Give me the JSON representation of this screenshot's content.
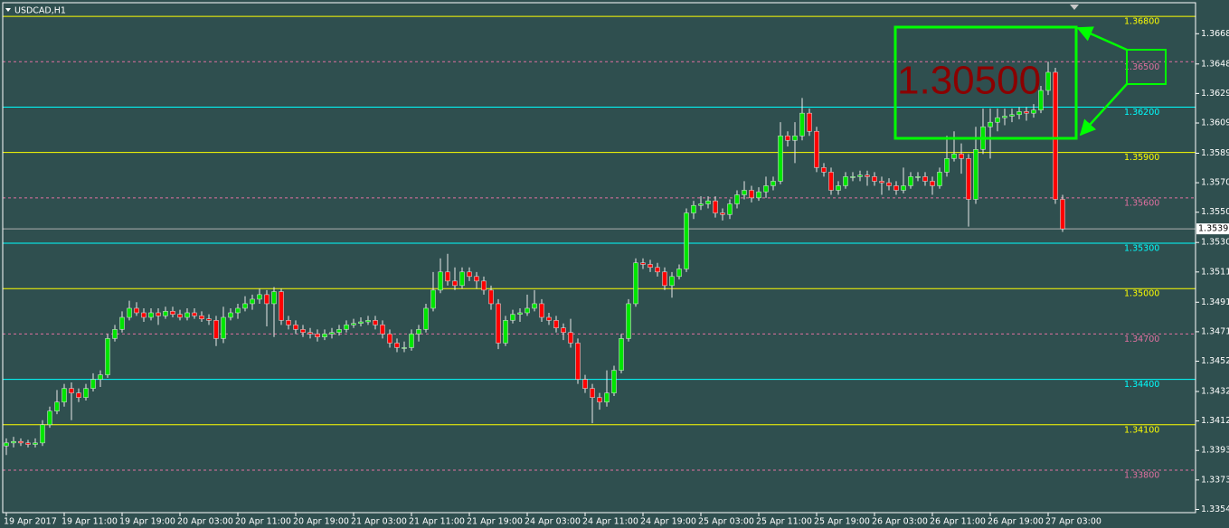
{
  "chart_data": {
    "type": "candlestick",
    "title": "USDCAD,H1",
    "annotation": "1.30500",
    "up_color": "#00e600",
    "down_color": "#ff0000",
    "wick_color": "#e8e8e8",
    "current_price": 1.35395,
    "ylim": [
      1.33519,
      1.36908
    ],
    "yticks": [
      1.36685,
      1.36485,
      {
        "value": 1.3629,
        "label": "1.36290"
      },
      1.36095,
      1.35895,
      {
        "value": 1.357,
        "label": "1.35700"
      },
      1.35505,
      1.35305,
      {
        "value": 1.3511,
        "label": "1.35110"
      },
      {
        "value": 1.3491,
        "label": "1.34910"
      },
      1.34715,
      {
        "value": 1.3452,
        "label": "1.34520"
      },
      {
        "value": 1.3432,
        "label": "1.34320"
      },
      1.34125,
      {
        "value": 1.3393,
        "label": "1.33930"
      },
      1.33735,
      {
        "value": 1.3354,
        "label": "1.33540"
      }
    ],
    "levels": [
      {
        "value": 1.368,
        "label": "1.36800",
        "color": "#ffff00",
        "dashed": false
      },
      {
        "value": 1.365,
        "label": "1.36500",
        "color": "#e070a0",
        "dashed": true
      },
      {
        "value": 1.362,
        "label": "1.36200",
        "color": "#00ffff",
        "dashed": false
      },
      {
        "value": 1.359,
        "label": "1.35900",
        "color": "#ffff00",
        "dashed": false
      },
      {
        "value": 1.356,
        "label": "1.35600",
        "color": "#e070a0",
        "dashed": true
      },
      {
        "value": 1.353,
        "label": "1.35300",
        "color": "#00ffff",
        "dashed": false
      },
      {
        "value": 1.35,
        "label": "1.35000",
        "color": "#ffff00",
        "dashed": false
      },
      {
        "value": 1.347,
        "label": "1.34700",
        "color": "#e070a0",
        "dashed": true
      },
      {
        "value": 1.344,
        "label": "1.34400",
        "color": "#00ffff",
        "dashed": false
      },
      {
        "value": 1.341,
        "label": "1.34100",
        "color": "#ffff00",
        "dashed": false
      },
      {
        "value": 1.338,
        "label": "1.33800",
        "color": "#e070a0",
        "dashed": true
      }
    ],
    "categories": [
      "19 Apr 2017",
      null,
      null,
      null,
      null,
      null,
      null,
      null,
      "19 Apr 11:00",
      null,
      null,
      null,
      null,
      null,
      null,
      null,
      "19 Apr 19:00",
      null,
      null,
      null,
      null,
      null,
      null,
      null,
      "20 Apr 03:00",
      null,
      null,
      null,
      null,
      null,
      null,
      null,
      "20 Apr 11:00",
      null,
      null,
      null,
      null,
      null,
      null,
      null,
      "20 Apr 19:00",
      null,
      null,
      null,
      null,
      null,
      null,
      null,
      "21 Apr 03:00",
      null,
      null,
      null,
      null,
      null,
      null,
      null,
      "21 Apr 11:00",
      null,
      null,
      null,
      null,
      null,
      null,
      null,
      "21 Apr 19:00",
      null,
      null,
      null,
      null,
      null,
      null,
      null,
      "24 Apr 03:00",
      null,
      null,
      null,
      null,
      null,
      null,
      null,
      "24 Apr 11:00",
      null,
      null,
      null,
      null,
      null,
      null,
      null,
      "24 Apr 19:00",
      null,
      null,
      null,
      null,
      null,
      null,
      null,
      "25 Apr 03:00",
      null,
      null,
      null,
      null,
      null,
      null,
      null,
      "25 Apr 11:00",
      null,
      null,
      null,
      null,
      null,
      null,
      null,
      "25 Apr 19:00",
      null,
      null,
      null,
      null,
      null,
      null,
      null,
      "26 Apr 03:00",
      null,
      null,
      null,
      null,
      null,
      null,
      null,
      "26 Apr 11:00",
      null,
      null,
      null,
      null,
      null,
      null,
      null,
      "26 Apr 19:00",
      null,
      null,
      null,
      null,
      null,
      null,
      null,
      "27 Apr 03:00",
      null,
      null
    ],
    "open": [
      1.3396,
      1.3398,
      1.3399,
      1.3398,
      1.3397,
      1.3398,
      1.341,
      1.3419,
      1.3425,
      1.3434,
      1.3431,
      1.3428,
      1.3434,
      1.344,
      1.3443,
      1.3467,
      1.3473,
      1.3481,
      1.3487,
      1.3484,
      1.3481,
      1.3484,
      1.3482,
      1.3485,
      1.3483,
      1.3481,
      1.3484,
      1.3482,
      1.348,
      1.3479,
      1.3467,
      1.3481,
      1.3484,
      1.3487,
      1.349,
      1.3493,
      1.3496,
      1.349,
      1.3498,
      1.3479,
      1.3476,
      1.3473,
      1.3471,
      1.347,
      1.3468,
      1.347,
      1.3471,
      1.3473,
      1.3476,
      1.3477,
      1.3478,
      1.3479,
      1.3476,
      1.347,
      1.3464,
      1.3461,
      1.3461,
      1.347,
      1.3473,
      1.3487,
      1.3499,
      1.3511,
      1.3505,
      1.3502,
      1.3511,
      1.3508,
      1.3505,
      1.3499,
      1.349,
      1.3464,
      1.3479,
      1.3483,
      1.3484,
      1.3487,
      1.349,
      1.3481,
      1.3479,
      1.3474,
      1.3471,
      1.3464,
      1.344,
      1.3434,
      1.3428,
      1.3425,
      1.3431,
      1.3446,
      1.3467,
      1.349,
      1.3517,
      1.3516,
      1.3514,
      1.3511,
      1.3502,
      1.3508,
      1.3513,
      1.355,
      1.3555,
      1.3556,
      1.3558,
      1.355,
      1.3549,
      1.3556,
      1.3562,
      1.3565,
      1.356,
      1.3564,
      1.3568,
      1.3571,
      1.3601,
      1.3598,
      1.3601,
      1.3616,
      1.3604,
      1.358,
      1.3577,
      1.3565,
      1.3568,
      1.3574,
      1.3574,
      1.3575,
      1.3574,
      1.3571,
      1.357,
      1.3568,
      1.3565,
      1.3568,
      1.3574,
      1.3574,
      1.3571,
      1.3568,
      1.3577,
      1.3586,
      1.3589,
      1.3586,
      1.3559,
      1.3592,
      1.3607,
      1.361,
      1.3613,
      1.3614,
      1.3615,
      1.3617,
      1.3616,
      1.3618,
      1.3631,
      1.3643,
      1.3559
    ],
    "high": [
      1.3401,
      1.3402,
      1.3401,
      1.34,
      1.3401,
      1.3413,
      1.3422,
      1.3433,
      1.3437,
      1.3438,
      1.3434,
      1.3437,
      1.3444,
      1.3446,
      1.347,
      1.3476,
      1.3485,
      1.3492,
      1.3491,
      1.3487,
      1.3487,
      1.3487,
      1.3488,
      1.3488,
      1.3486,
      1.3487,
      1.3487,
      1.3485,
      1.3483,
      1.3482,
      1.3488,
      1.3487,
      1.349,
      1.3495,
      1.3496,
      1.35,
      1.3499,
      1.3501,
      1.35,
      1.3482,
      1.3479,
      1.3476,
      1.3474,
      1.3473,
      1.3473,
      1.3474,
      1.3476,
      1.3479,
      1.348,
      1.3481,
      1.3482,
      1.3482,
      1.3479,
      1.3473,
      1.3467,
      1.3465,
      1.3473,
      1.3476,
      1.349,
      1.3511,
      1.352,
      1.3523,
      1.3514,
      1.3514,
      1.3514,
      1.3511,
      1.3508,
      1.3502,
      1.3493,
      1.3482,
      1.3486,
      1.3487,
      1.3496,
      1.3499,
      1.3493,
      1.3484,
      1.3482,
      1.3477,
      1.348,
      1.3467,
      1.3443,
      1.3437,
      1.3431,
      1.3446,
      1.3449,
      1.347,
      1.3493,
      1.352,
      1.352,
      1.3519,
      1.3517,
      1.3514,
      1.3511,
      1.3516,
      1.3553,
      1.3558,
      1.3561,
      1.3561,
      1.3561,
      1.3553,
      1.3559,
      1.3565,
      1.3571,
      1.3568,
      1.3567,
      1.3574,
      1.3574,
      1.361,
      1.3604,
      1.361,
      1.3626,
      1.3619,
      1.3607,
      1.3583,
      1.358,
      1.3571,
      1.3577,
      1.3577,
      1.3578,
      1.3578,
      1.3577,
      1.3574,
      1.3573,
      1.3571,
      1.358,
      1.3577,
      1.3577,
      1.3577,
      1.3574,
      1.358,
      1.3601,
      1.3604,
      1.3596,
      1.3589,
      1.3607,
      1.3619,
      1.3619,
      1.3619,
      1.3619,
      1.3619,
      1.362,
      1.362,
      1.3622,
      1.3634,
      1.365,
      1.3646,
      1.3562
    ],
    "low": [
      1.339,
      1.3395,
      1.3396,
      1.3395,
      1.3395,
      1.3396,
      1.3408,
      1.3417,
      1.3422,
      1.3413,
      1.3425,
      1.3426,
      1.3432,
      1.3435,
      1.3441,
      1.3465,
      1.3471,
      1.3479,
      1.3482,
      1.3478,
      1.3479,
      1.3476,
      1.348,
      1.3481,
      1.3479,
      1.3479,
      1.348,
      1.3478,
      1.3476,
      1.3462,
      1.3464,
      1.3479,
      1.348,
      1.3485,
      1.3486,
      1.349,
      1.3475,
      1.3468,
      1.3476,
      1.3473,
      1.347,
      1.3468,
      1.3467,
      1.3465,
      1.3466,
      1.3467,
      1.3469,
      1.3471,
      1.3474,
      1.3475,
      1.3476,
      1.3473,
      1.3467,
      1.3461,
      1.3458,
      1.3458,
      1.3459,
      1.3465,
      1.3471,
      1.3485,
      1.3497,
      1.3502,
      1.3499,
      1.35,
      1.3505,
      1.35,
      1.3496,
      1.3486,
      1.346,
      1.3462,
      1.3477,
      1.3478,
      1.3482,
      1.3485,
      1.3478,
      1.3476,
      1.3471,
      1.3466,
      1.3461,
      1.3437,
      1.3431,
      1.3411,
      1.342,
      1.3422,
      1.3429,
      1.3444,
      1.3465,
      1.3488,
      1.3513,
      1.3511,
      1.3508,
      1.3499,
      1.3494,
      1.3506,
      1.3511,
      1.3546,
      1.3552,
      1.3553,
      1.3547,
      1.3545,
      1.3546,
      1.3553,
      1.3559,
      1.3557,
      1.3558,
      1.356,
      1.3565,
      1.3569,
      1.3594,
      1.3583,
      1.3598,
      1.3601,
      1.3577,
      1.3574,
      1.3562,
      1.3562,
      1.3566,
      1.3571,
      1.3571,
      1.3568,
      1.3568,
      1.3562,
      1.3565,
      1.3562,
      1.3563,
      1.3566,
      1.3571,
      1.3568,
      1.3562,
      1.3566,
      1.3574,
      1.3584,
      1.3576,
      1.3541,
      1.3556,
      1.3589,
      1.3586,
      1.3604,
      1.3608,
      1.361,
      1.3612,
      1.3611,
      1.3613,
      1.3616,
      1.3628,
      1.3556,
      1.35375
    ],
    "close": [
      1.3398,
      1.3399,
      1.3398,
      1.3397,
      1.3398,
      1.341,
      1.3419,
      1.3425,
      1.3434,
      1.3431,
      1.3428,
      1.3434,
      1.344,
      1.3443,
      1.3467,
      1.3473,
      1.3481,
      1.3487,
      1.3484,
      1.3481,
      1.3484,
      1.3482,
      1.3485,
      1.3483,
      1.3481,
      1.3484,
      1.3482,
      1.348,
      1.3479,
      1.3467,
      1.3481,
      1.3484,
      1.3487,
      1.349,
      1.3493,
      1.3496,
      1.349,
      1.3498,
      1.3479,
      1.3476,
      1.3473,
      1.3471,
      1.347,
      1.3468,
      1.347,
      1.3471,
      1.3473,
      1.3476,
      1.3477,
      1.3478,
      1.3479,
      1.3476,
      1.347,
      1.3464,
      1.3461,
      1.3461,
      1.347,
      1.3473,
      1.3487,
      1.3499,
      1.3511,
      1.3505,
      1.3502,
      1.3511,
      1.3508,
      1.3505,
      1.3499,
      1.349,
      1.3464,
      1.3479,
      1.3483,
      1.3484,
      1.3487,
      1.349,
      1.3481,
      1.3479,
      1.3474,
      1.3471,
      1.3464,
      1.344,
      1.3434,
      1.3428,
      1.3425,
      1.3431,
      1.3446,
      1.3467,
      1.349,
      1.3517,
      1.3516,
      1.3514,
      1.3511,
      1.3502,
      1.3508,
      1.3513,
      1.355,
      1.3555,
      1.3556,
      1.3558,
      1.355,
      1.3549,
      1.3556,
      1.3562,
      1.3565,
      1.356,
      1.3564,
      1.3568,
      1.3571,
      1.3601,
      1.3598,
      1.3601,
      1.3616,
      1.3604,
      1.358,
      1.3577,
      1.3565,
      1.3568,
      1.3574,
      1.3574,
      1.3575,
      1.3574,
      1.3571,
      1.357,
      1.3568,
      1.3565,
      1.3568,
      1.3574,
      1.3574,
      1.3571,
      1.3568,
      1.3577,
      1.3586,
      1.3589,
      1.3586,
      1.3559,
      1.3592,
      1.3607,
      1.361,
      1.3613,
      1.3614,
      1.3615,
      1.3617,
      1.3616,
      1.3618,
      1.3631,
      1.3643,
      1.3559,
      1.35395
    ]
  }
}
